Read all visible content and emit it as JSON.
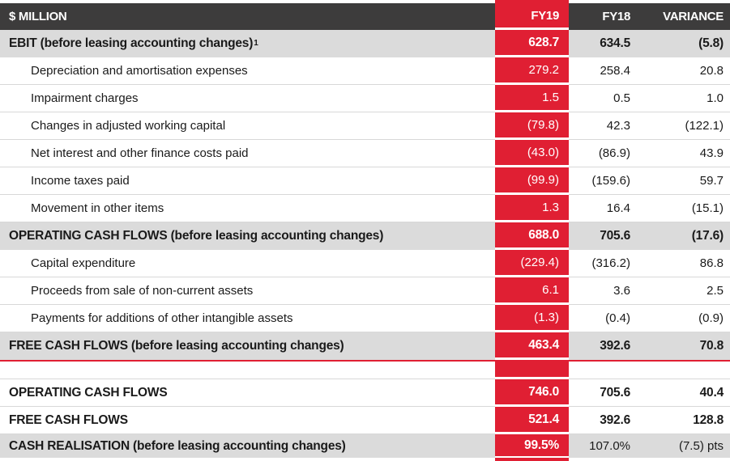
{
  "colors": {
    "red": "#E01F33",
    "header_bg": "#3D3C3C",
    "summary_row_bg": "#DBDBDB",
    "separator": "#D8D8D8",
    "text": "#1a1a1a",
    "inverse_text": "#ffffff"
  },
  "table": {
    "header": {
      "label": "$ MILLION",
      "fy19": "FY19",
      "fy18": "FY18",
      "variance": "VARIANCE"
    },
    "rows": [
      {
        "kind": "summary",
        "label": "EBIT (before leasing accounting changes)",
        "sup": "1",
        "fy19": "628.7",
        "fy18": "634.5",
        "variance": "(5.8)"
      },
      {
        "kind": "detail",
        "label": "Depreciation and amortisation expenses",
        "fy19": "279.2",
        "fy18": "258.4",
        "variance": "20.8"
      },
      {
        "kind": "detail",
        "label": "Impairment charges",
        "fy19": "1.5",
        "fy18": "0.5",
        "variance": "1.0"
      },
      {
        "kind": "detail",
        "label": "Changes in adjusted working capital",
        "fy19": "(79.8)",
        "fy18": "42.3",
        "variance": "(122.1)"
      },
      {
        "kind": "detail",
        "label": "Net interest and other finance costs paid",
        "fy19": "(43.0)",
        "fy18": "(86.9)",
        "variance": "43.9"
      },
      {
        "kind": "detail",
        "label": "Income taxes paid",
        "fy19": "(99.9)",
        "fy18": "(159.6)",
        "variance": "59.7"
      },
      {
        "kind": "detail",
        "label": "Movement in other items",
        "fy19": "1.3",
        "fy18": "16.4",
        "variance": "(15.1)"
      },
      {
        "kind": "summary",
        "label": "OPERATING CASH FLOWS (before leasing accounting changes)",
        "fy19": "688.0",
        "fy18": "705.6",
        "variance": "(17.6)"
      },
      {
        "kind": "detail",
        "label": "Capital expenditure",
        "fy19": "(229.4)",
        "fy18": "(316.2)",
        "variance": "86.8"
      },
      {
        "kind": "detail",
        "label": "Proceeds from sale of non-current assets",
        "fy19": "6.1",
        "fy18": "3.6",
        "variance": "2.5"
      },
      {
        "kind": "detail",
        "label": "Payments for additions of other intangible assets",
        "fy19": "(1.3)",
        "fy18": "(0.4)",
        "variance": "(0.9)"
      },
      {
        "kind": "summary",
        "red_rule": true,
        "label": "FREE CASH FLOWS (before leasing accounting changes)",
        "fy19": "463.4",
        "fy18": "392.6",
        "variance": "70.8"
      },
      {
        "kind": "spacer",
        "label": "",
        "fy19": "",
        "fy18": "",
        "variance": ""
      },
      {
        "kind": "total",
        "label": "OPERATING CASH FLOWS",
        "fy19": "746.0",
        "fy18": "705.6",
        "variance": "40.4"
      },
      {
        "kind": "total",
        "label": "FREE CASH FLOWS",
        "fy19": "521.4",
        "fy18": "392.6",
        "variance": "128.8"
      },
      {
        "kind": "summary",
        "plain_comparatives": true,
        "last": true,
        "label": "CASH REALISATION (before leasing accounting changes)",
        "fy19": "99.5%",
        "fy18": "107.0%",
        "variance": "(7.5) pts"
      }
    ]
  }
}
